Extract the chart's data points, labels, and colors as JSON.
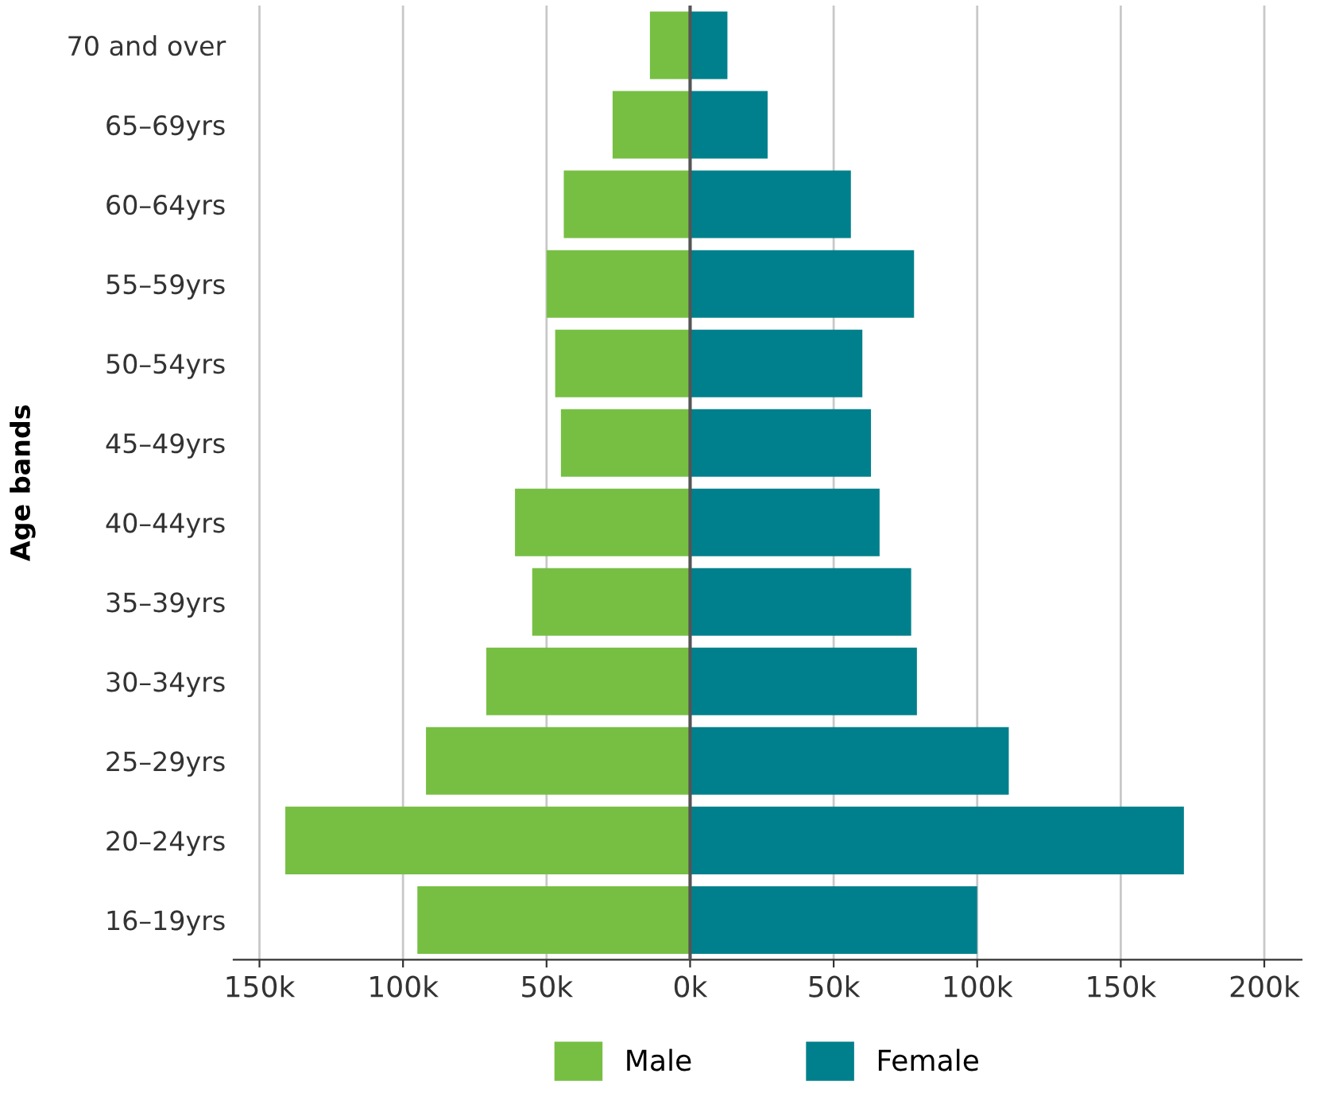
{
  "chart_data": {
    "type": "bar",
    "orientation": "horizontal",
    "stacked": true,
    "ylabel": "Age bands",
    "categories": [
      "70 and over",
      "65–69yrs",
      "60–64yrs",
      "55–59yrs",
      "50–54yrs",
      "45–49yrs",
      "40–44yrs",
      "35–39yrs",
      "30–34yrs",
      "25–29yrs",
      "20–24yrs",
      "16–19yrs"
    ],
    "series": [
      {
        "name": "Male",
        "color": "#76bf43",
        "values": [
          -14000,
          -27000,
          -44000,
          -50000,
          -47000,
          -45000,
          -61000,
          -55000,
          -71000,
          -92000,
          -141000,
          -95000
        ]
      },
      {
        "name": "Female",
        "color": "#00808c",
        "values": [
          13000,
          27000,
          56000,
          78000,
          60000,
          63000,
          66000,
          77000,
          79000,
          111000,
          172000,
          100000
        ]
      }
    ],
    "xlim": [
      -159000,
      213000
    ],
    "xticks": [
      {
        "value": -150000,
        "label": "150k"
      },
      {
        "value": -100000,
        "label": "100k"
      },
      {
        "value": -50000,
        "label": "50k"
      },
      {
        "value": 0,
        "label": "0k"
      },
      {
        "value": 50000,
        "label": "50k"
      },
      {
        "value": 100000,
        "label": "100k"
      },
      {
        "value": 150000,
        "label": "150k"
      },
      {
        "value": 200000,
        "label": "200k"
      }
    ],
    "ref_lines": [
      {
        "axis": "x",
        "value": 0,
        "color": "#555555"
      }
    ],
    "grid": "x",
    "legend": "bottom"
  }
}
